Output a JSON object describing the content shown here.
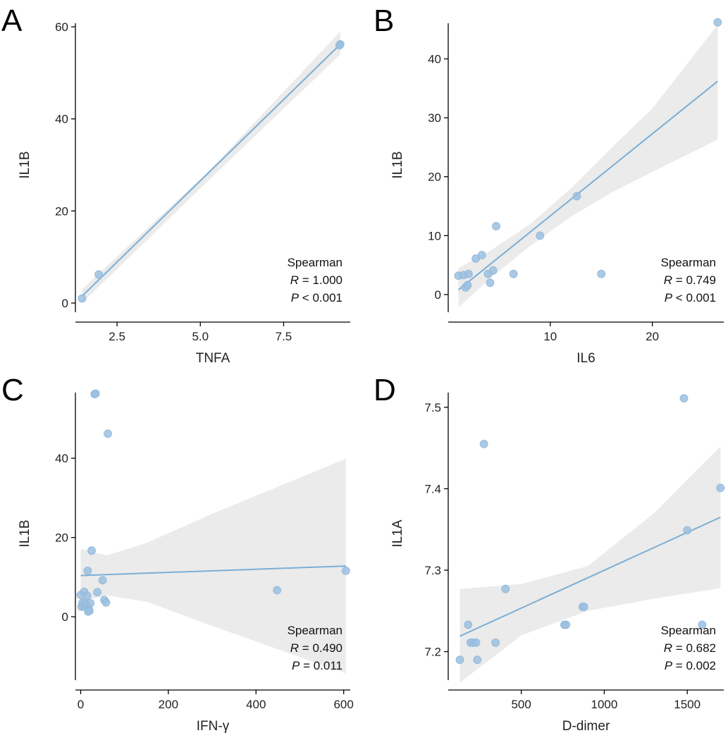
{
  "chart_data": [
    {
      "panel": "A",
      "type": "scatter",
      "xlabel": "TNFA",
      "ylabel": "IL1B",
      "xlim": [
        1.25,
        9.5
      ],
      "ylim": [
        -2,
        62
      ],
      "xticks": [
        2.5,
        5.0,
        7.5
      ],
      "yticks": [
        0,
        20,
        40,
        60
      ],
      "x_tick_labels": [
        "2.5",
        "5.0",
        "7.5"
      ],
      "y_tick_labels": [
        "0",
        "20",
        "40",
        "60"
      ],
      "points": [
        {
          "x": 1.45,
          "y": 1.0
        },
        {
          "x": 1.95,
          "y": 6.2
        },
        {
          "x": 9.2,
          "y": 56.2
        },
        {
          "x": 9.18,
          "y": 56.0
        }
      ],
      "fit": {
        "x": [
          1.45,
          9.2
        ],
        "y": [
          1.5,
          56.2
        ]
      },
      "ci": {
        "x": [
          1.45,
          5.3,
          9.2
        ],
        "lower": [
          0.0,
          27.0,
          54.0
        ],
        "upper": [
          3.0,
          29.0,
          59.0
        ]
      },
      "stats": {
        "method": "Spearman",
        "r_label": "R",
        "r_value": " = 1.000",
        "p_label": "P",
        "p_value": " < 0.001"
      }
    },
    {
      "panel": "B",
      "type": "scatter",
      "xlabel": "IL6",
      "ylabel": "IL1B",
      "xlim": [
        0.0,
        27.0
      ],
      "ylim": [
        -3,
        47
      ],
      "xticks": [
        10,
        20
      ],
      "yticks": [
        0,
        10,
        20,
        30,
        40
      ],
      "x_tick_labels": [
        "10",
        "20"
      ],
      "y_tick_labels": [
        "0",
        "10",
        "20",
        "30",
        "40"
      ],
      "points": [
        {
          "x": 1.0,
          "y": 3.2
        },
        {
          "x": 1.5,
          "y": 3.3
        },
        {
          "x": 1.7,
          "y": 1.2
        },
        {
          "x": 1.9,
          "y": 1.6
        },
        {
          "x": 2.0,
          "y": 3.5
        },
        {
          "x": 2.7,
          "y": 6.1
        },
        {
          "x": 3.3,
          "y": 6.7
        },
        {
          "x": 3.9,
          "y": 3.5
        },
        {
          "x": 4.1,
          "y": 2.0
        },
        {
          "x": 4.4,
          "y": 4.1
        },
        {
          "x": 4.7,
          "y": 11.6
        },
        {
          "x": 6.4,
          "y": 3.5
        },
        {
          "x": 9.0,
          "y": 10.0
        },
        {
          "x": 12.6,
          "y": 16.7
        },
        {
          "x": 15.0,
          "y": 3.5
        },
        {
          "x": 26.4,
          "y": 46.2
        }
      ],
      "fit": {
        "x": [
          1.0,
          26.4
        ],
        "y": [
          0.8,
          36.2
        ]
      },
      "ci": {
        "x": [
          1.0,
          4.0,
          8.0,
          12.0,
          16.0,
          20.0,
          26.4
        ],
        "lower": [
          -2.2,
          2.6,
          8.2,
          13.2,
          17.3,
          20.8,
          26.3
        ],
        "upper": [
          4.5,
          7.3,
          11.9,
          18.0,
          24.9,
          31.6,
          45.8
        ]
      },
      "stats": {
        "method": "Spearman",
        "r_label": "R",
        "r_value": " = 0.749",
        "p_label": "P",
        "p_value": " < 0.001"
      }
    },
    {
      "panel": "C",
      "type": "scatter",
      "xlabel": "IFN-γ",
      "ylabel": "IL1B",
      "xlim": [
        -12,
        615
      ],
      "ylim": [
        -16,
        58
      ],
      "xticks": [
        0,
        200,
        400,
        600
      ],
      "yticks": [
        0,
        20,
        40
      ],
      "x_tick_labels": [
        "0",
        "200",
        "400",
        "600"
      ],
      "y_tick_labels": [
        "0",
        "20",
        "40"
      ],
      "points": [
        {
          "x": 0,
          "y": 5.5
        },
        {
          "x": 2,
          "y": 2.5
        },
        {
          "x": 4,
          "y": 3.5
        },
        {
          "x": 6,
          "y": 2.8
        },
        {
          "x": 8,
          "y": 6.3
        },
        {
          "x": 10,
          "y": 3.6
        },
        {
          "x": 13,
          "y": 3.0
        },
        {
          "x": 15,
          "y": 5.3
        },
        {
          "x": 16,
          "y": 11.6
        },
        {
          "x": 17,
          "y": 1.3
        },
        {
          "x": 18,
          "y": 2.0
        },
        {
          "x": 20,
          "y": 1.5
        },
        {
          "x": 22,
          "y": 3.4
        },
        {
          "x": 25,
          "y": 16.7
        },
        {
          "x": 32,
          "y": 56.2
        },
        {
          "x": 34,
          "y": 56.3
        },
        {
          "x": 38,
          "y": 6.2
        },
        {
          "x": 50,
          "y": 9.2
        },
        {
          "x": 54,
          "y": 4.2
        },
        {
          "x": 58,
          "y": 3.6
        },
        {
          "x": 62,
          "y": 46.2
        },
        {
          "x": 448,
          "y": 6.7
        },
        {
          "x": 605,
          "y": 11.6
        }
      ],
      "fit": {
        "x": [
          0,
          605
        ],
        "y": [
          10.4,
          12.8
        ]
      },
      "ci": {
        "x": [
          0,
          60,
          150,
          300,
          450,
          605
        ],
        "lower": [
          3.7,
          5.4,
          3.8,
          -2.3,
          -8.2,
          -14.3
        ],
        "upper": [
          17.1,
          15.5,
          18.6,
          26.0,
          32.8,
          39.9
        ]
      },
      "stats": {
        "method": "Spearman",
        "r_label": "R",
        "r_value": " = 0.490",
        "p_label": "P",
        "p_value": " = 0.011"
      }
    },
    {
      "panel": "D",
      "type": "scatter",
      "xlabel": "D-dimer",
      "ylabel": "IL1A",
      "xlim": [
        60,
        1720
      ],
      "ylim": [
        7.165,
        7.525
      ],
      "xticks": [
        500,
        1000,
        1500
      ],
      "yticks": [
        7.2,
        7.3,
        7.4,
        7.5
      ],
      "x_tick_labels": [
        "500",
        "1000",
        "1500"
      ],
      "y_tick_labels": [
        "7.2",
        "7.3",
        "7.4",
        "7.5"
      ],
      "points": [
        {
          "x": 130,
          "y": 7.19
        },
        {
          "x": 180,
          "y": 7.233
        },
        {
          "x": 195,
          "y": 7.211
        },
        {
          "x": 210,
          "y": 7.211
        },
        {
          "x": 228,
          "y": 7.211
        },
        {
          "x": 235,
          "y": 7.19
        },
        {
          "x": 275,
          "y": 7.455
        },
        {
          "x": 345,
          "y": 7.211
        },
        {
          "x": 405,
          "y": 7.277
        },
        {
          "x": 760,
          "y": 7.233
        },
        {
          "x": 770,
          "y": 7.233
        },
        {
          "x": 870,
          "y": 7.255
        },
        {
          "x": 878,
          "y": 7.255
        },
        {
          "x": 1480,
          "y": 7.511
        },
        {
          "x": 1500,
          "y": 7.349
        },
        {
          "x": 1590,
          "y": 7.233
        },
        {
          "x": 1700,
          "y": 7.401
        }
      ],
      "fit": {
        "x": [
          130,
          1700
        ],
        "y": [
          7.219,
          7.365
        ]
      },
      "ci": {
        "x": [
          130,
          500,
          900,
          1300,
          1700
        ],
        "lower": [
          7.162,
          7.22,
          7.25,
          7.265,
          7.278
        ],
        "upper": [
          7.277,
          7.283,
          7.305,
          7.37,
          7.452
        ]
      },
      "stats": {
        "method": "Spearman",
        "r_label": "R",
        "r_value": " = 0.682",
        "p_label": "P",
        "p_value": " = 0.002"
      }
    }
  ]
}
